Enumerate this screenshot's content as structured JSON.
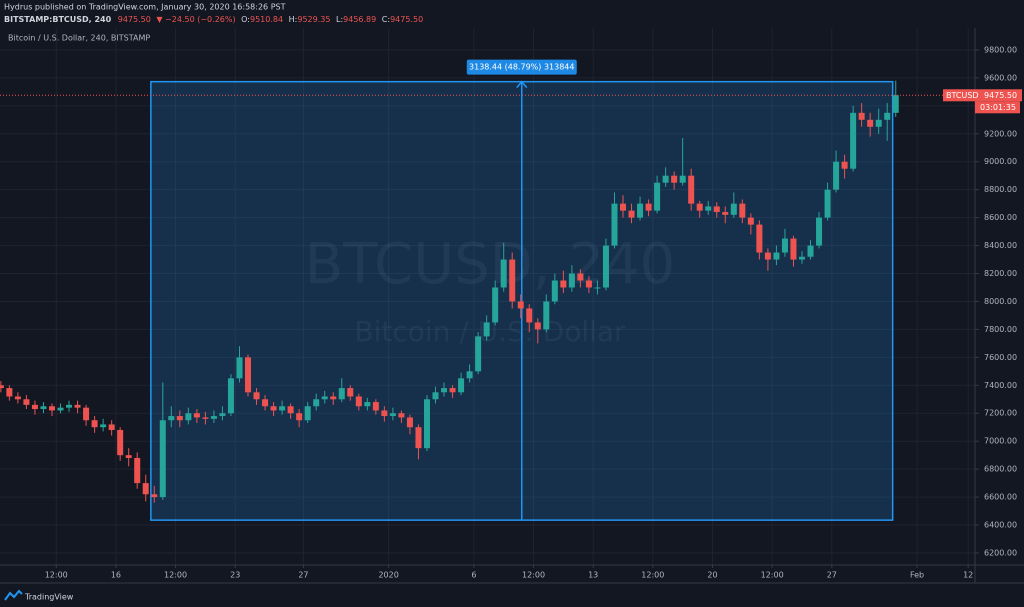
{
  "header": {
    "publisher": "Hydrus published on TradingView.com, January 30, 2020 16:58:26 PST",
    "symbol": "BITSTAMP:BTCUSD, 240",
    "price": "9475.50",
    "change": "▼ −24.50 (−0.26%)",
    "ohlc": [
      {
        "key": "O:",
        "value": "9510.84"
      },
      {
        "key": "H:",
        "value": "9529.35"
      },
      {
        "key": "L:",
        "value": "9456.89"
      },
      {
        "key": "C:",
        "value": "9475.50"
      }
    ]
  },
  "footer": {
    "brand": "TradingView"
  },
  "chart_data": {
    "type": "candlestick",
    "title": "Bitcoin / U.S. Dollar, 240, BITSTAMP",
    "watermark": "BTCUSD, 240",
    "watermark_subtitle": "Bitcoin / U.S. Dollar",
    "up_color": "#26a69a",
    "down_color": "#ef5350",
    "grid": true,
    "x": [
      9.25,
      9.75,
      10.25,
      10.75,
      11.25,
      11.75,
      12.25,
      12.75,
      13.25,
      13.75,
      14.25,
      14.75,
      15.25,
      15.75,
      16.25,
      16.75,
      17.25,
      17.75,
      18.25,
      18.75,
      19.25,
      19.75,
      20.25,
      20.75,
      21.25,
      21.75,
      22.25,
      22.75,
      23.25,
      23.75,
      24.25,
      24.75,
      25.25,
      25.75,
      26.25,
      26.75,
      27.25,
      27.75,
      28.25,
      28.75,
      29.25,
      29.75,
      30.25,
      30.75,
      31.25,
      31.75,
      32.25,
      32.75,
      33.25,
      33.75,
      34.25,
      34.75,
      35.25,
      35.75,
      36.25,
      36.75,
      37.25,
      37.75,
      38.25,
      38.75,
      39.25,
      39.75,
      40.25,
      40.75,
      41.25,
      41.75,
      42.25,
      42.75,
      43.25,
      43.75,
      44.25,
      44.75,
      45.25,
      45.75,
      46.25,
      46.75,
      47.25,
      47.75,
      48.25,
      48.75,
      49.25,
      49.75,
      50.25,
      50.75,
      51.25,
      51.75,
      52.25,
      52.75,
      53.25,
      53.75,
      54.25,
      54.75,
      55.25,
      55.75,
      56.25,
      56.75,
      57.25,
      57.75,
      58.25,
      58.75,
      59.25,
      59.75,
      60.25,
      60.75,
      61.25,
      61.75
    ],
    "open": [
      7400,
      7380,
      7320,
      7300,
      7260,
      7230,
      7250,
      7220,
      7240,
      7260,
      7240,
      7150,
      7100,
      7120,
      7080,
      6900,
      6880,
      6700,
      6620,
      6600,
      7150,
      7180,
      7150,
      7200,
      7170,
      7160,
      7180,
      7200,
      7450,
      7600,
      7350,
      7300,
      7250,
      7220,
      7250,
      7200,
      7150,
      7250,
      7300,
      7320,
      7300,
      7380,
      7320,
      7250,
      7280,
      7220,
      7180,
      7200,
      7170,
      7100,
      6950,
      7300,
      7350,
      7380,
      7350,
      7450,
      7500,
      7750,
      7850,
      8100,
      8300,
      8000,
      7950,
      7850,
      7800,
      8000,
      8150,
      8100,
      8200,
      8150,
      8100,
      8100,
      8400,
      8700,
      8650,
      8600,
      8700,
      8650,
      8850,
      8900,
      8850,
      8900,
      8700,
      8650,
      8680,
      8640,
      8620,
      8700,
      8600,
      8550,
      8350,
      8300,
      8350,
      8450,
      8300,
      8320,
      8400,
      8600,
      8800,
      9000,
      8950,
      9350,
      9300,
      9250,
      9300,
      9350
    ],
    "high": [
      7430,
      7400,
      7350,
      7330,
      7290,
      7280,
      7270,
      7270,
      7290,
      7290,
      7260,
      7180,
      7160,
      7150,
      7100,
      6950,
      6920,
      6760,
      6680,
      7420,
      7250,
      7220,
      7240,
      7230,
      7210,
      7220,
      7250,
      7480,
      7680,
      7620,
      7380,
      7330,
      7280,
      7290,
      7270,
      7230,
      7280,
      7340,
      7360,
      7350,
      7450,
      7400,
      7340,
      7310,
      7300,
      7250,
      7240,
      7220,
      7190,
      7120,
      7330,
      7390,
      7420,
      7400,
      7490,
      7550,
      7780,
      7900,
      8150,
      8420,
      8350,
      8050,
      7980,
      7880,
      8050,
      8200,
      8220,
      8260,
      8230,
      8180,
      8150,
      8450,
      8780,
      8760,
      8700,
      8750,
      8730,
      8900,
      8960,
      8930,
      9170,
      8950,
      8720,
      8720,
      8710,
      8680,
      8780,
      8730,
      8630,
      8580,
      8380,
      8400,
      8520,
      8470,
      8360,
      8440,
      8640,
      8850,
      9080,
      9050,
      9400,
      9420,
      9350,
      9380,
      9420,
      9580
    ],
    "low": [
      7350,
      7290,
      7270,
      7230,
      7190,
      7200,
      7180,
      7200,
      7210,
      7200,
      7110,
      7060,
      7070,
      7040,
      6860,
      6820,
      6660,
      6570,
      6560,
      6580,
      7100,
      7100,
      7120,
      7130,
      7120,
      7130,
      7150,
      7180,
      7420,
      7320,
      7260,
      7220,
      7180,
      7190,
      7160,
      7100,
      7130,
      7220,
      7270,
      7260,
      7280,
      7290,
      7220,
      7220,
      7190,
      7140,
      7150,
      7130,
      7050,
      6870,
      6930,
      7270,
      7320,
      7310,
      7330,
      7420,
      7480,
      7720,
      7830,
      8070,
      7950,
      7880,
      7780,
      7700,
      7780,
      7980,
      8060,
      8070,
      8100,
      8060,
      8050,
      8080,
      8380,
      8600,
      8560,
      8580,
      8610,
      8630,
      8820,
      8800,
      8830,
      8650,
      8600,
      8620,
      8600,
      8560,
      8600,
      8560,
      8480,
      8300,
      8220,
      8260,
      8320,
      8250,
      8270,
      8300,
      8380,
      8580,
      8780,
      8880,
      8930,
      9250,
      9180,
      9200,
      9150,
      9320
    ],
    "close": [
      7380,
      7320,
      7300,
      7260,
      7230,
      7250,
      7220,
      7240,
      7260,
      7240,
      7150,
      7100,
      7120,
      7080,
      6900,
      6880,
      6700,
      6620,
      6600,
      7150,
      7180,
      7150,
      7200,
      7170,
      7160,
      7180,
      7200,
      7450,
      7600,
      7350,
      7300,
      7250,
      7220,
      7250,
      7200,
      7150,
      7250,
      7300,
      7320,
      7300,
      7380,
      7320,
      7250,
      7280,
      7220,
      7180,
      7200,
      7170,
      7100,
      6950,
      7300,
      7350,
      7380,
      7350,
      7450,
      7500,
      7750,
      7850,
      8100,
      8300,
      8000,
      7950,
      7850,
      7800,
      8000,
      8150,
      8100,
      8200,
      8150,
      8100,
      8100,
      8400,
      8700,
      8650,
      8600,
      8700,
      8650,
      8850,
      8900,
      8850,
      8900,
      8700,
      8650,
      8680,
      8640,
      8620,
      8700,
      8600,
      8550,
      8350,
      8300,
      8350,
      8450,
      8300,
      8320,
      8400,
      8600,
      8800,
      9000,
      8950,
      9350,
      9300,
      9250,
      9300,
      9350,
      9475.5
    ],
    "xlim": [
      9.2,
      66.4
    ],
    "ylim": [
      6114,
      9957
    ],
    "xticks": [
      {
        "value": 12.5,
        "label": "12:00"
      },
      16,
      {
        "value": 19.5,
        "label": "12:00"
      },
      23,
      27,
      {
        "value": 32,
        "label": "2020"
      },
      {
        "value": 37,
        "label": "6"
      },
      {
        "value": 40.5,
        "label": "12:00"
      },
      {
        "value": 44,
        "label": "13"
      },
      {
        "value": 47.5,
        "label": "12:00"
      },
      {
        "value": 51,
        "label": "20"
      },
      {
        "value": 54.5,
        "label": "12:00"
      },
      {
        "value": 58,
        "label": "27"
      },
      {
        "value": 63,
        "label": "Feb"
      },
      {
        "value": 66,
        "label": "12"
      }
    ],
    "yticks": [
      {
        "value": 6200,
        "label": "6200.00"
      },
      {
        "value": 6400,
        "label": "6400.00"
      },
      {
        "value": 6600,
        "label": "6600.00"
      },
      {
        "value": 6800,
        "label": "6800.00"
      },
      {
        "value": 7000,
        "label": "7000.00"
      },
      {
        "value": 7200,
        "label": "7200.00"
      },
      {
        "value": 7400,
        "label": "7400.00"
      },
      {
        "value": 7600,
        "label": "7600.00"
      },
      {
        "value": 7800,
        "label": "7800.00"
      },
      {
        "value": 8000,
        "label": "8000.00"
      },
      {
        "value": 8200,
        "label": "8200.00"
      },
      {
        "value": 8400,
        "label": "8400.00"
      },
      {
        "value": 8600,
        "label": "8600.00"
      },
      {
        "value": 8800,
        "label": "8800.00"
      },
      {
        "value": 9000,
        "label": "9000.00"
      },
      {
        "value": 9200,
        "label": "9200.00"
      },
      {
        "value": 9400,
        "label": "9400.00"
      },
      {
        "value": 9600,
        "label": "9600.00"
      },
      {
        "value": 9800,
        "label": "9800.00"
      }
    ],
    "last_price": {
      "value": 9475.5,
      "label": "9475.50",
      "symbol": "BTCUSD",
      "countdown": "03:01:35"
    },
    "measure": {
      "label": "3138.44 (48.79%) 313844",
      "xlim": [
        18.05,
        61.57
      ],
      "ylim": [
        6435,
        9573
      ]
    }
  }
}
